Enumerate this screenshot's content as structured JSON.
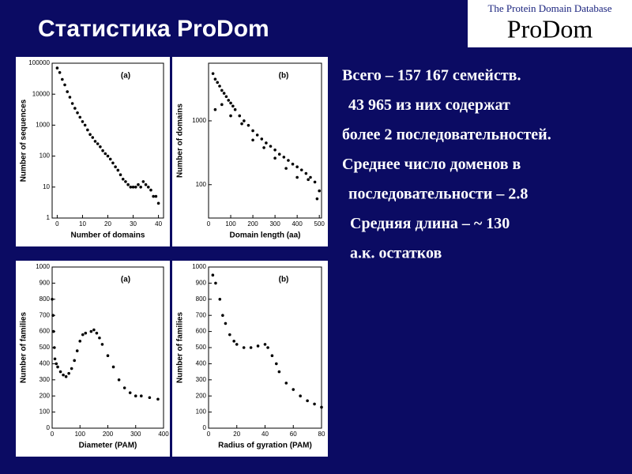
{
  "title": "Статистика ProDom",
  "logo": {
    "subtitle": "The Protein Domain Database",
    "name": "ProDom"
  },
  "text_lines": [
    "Всего – 157 167 семейств.",
    "43 965 из них содержат",
    "более 2 последовательностей.",
    "Среднее число доменов в",
    "последовательности – 2.8",
    "Средняя длина – ~ 130",
    "а.к. остатков"
  ],
  "chart_data": [
    {
      "type": "scatter",
      "annotation": "(a)",
      "x_label": "Number of domains",
      "y_label": "Number of sequences",
      "color": "#000000",
      "log_y": true,
      "x": [
        0,
        1,
        2,
        3,
        4,
        5,
        6,
        7,
        8,
        9,
        10,
        11,
        12,
        13,
        14,
        15,
        16,
        17,
        18,
        19,
        20,
        21,
        22,
        23,
        24,
        25,
        26,
        27,
        28,
        29,
        30,
        31,
        32,
        33,
        34,
        35,
        36,
        37,
        38,
        39,
        40
      ],
      "values": [
        70000,
        50000,
        30000,
        20000,
        12000,
        8000,
        5000,
        3500,
        2500,
        1800,
        1300,
        1000,
        700,
        500,
        400,
        300,
        250,
        200,
        150,
        120,
        100,
        80,
        60,
        45,
        35,
        25,
        18,
        15,
        12,
        10,
        10,
        10,
        12,
        10,
        15,
        12,
        10,
        8,
        5,
        5,
        3
      ],
      "xlim": [
        -2,
        42
      ],
      "xticks": [
        0,
        10,
        20,
        30,
        40
      ],
      "ylim": [
        1,
        100000
      ],
      "yticks": [
        1,
        10,
        100,
        1000,
        10000,
        100000
      ]
    },
    {
      "type": "scatter",
      "annotation": "(b)",
      "x_label": "Domain length (aa)",
      "y_label": "Number of domains",
      "color": "#000000",
      "log_y": true,
      "x": [
        20,
        30,
        40,
        50,
        60,
        70,
        80,
        90,
        100,
        110,
        120,
        140,
        160,
        180,
        200,
        220,
        240,
        260,
        280,
        300,
        320,
        340,
        360,
        380,
        400,
        420,
        440,
        460,
        480,
        500,
        30,
        60,
        100,
        150,
        200,
        250,
        300,
        350,
        400,
        450,
        490
      ],
      "values": [
        5500,
        4500,
        4000,
        3500,
        3000,
        2700,
        2400,
        2100,
        1900,
        1700,
        1500,
        1200,
        1000,
        850,
        700,
        600,
        520,
        450,
        400,
        350,
        300,
        270,
        240,
        210,
        190,
        170,
        150,
        130,
        110,
        80,
        1500,
        1800,
        1200,
        900,
        500,
        380,
        260,
        180,
        130,
        120,
        60
      ],
      "xlim": [
        0,
        510
      ],
      "xticks": [
        0,
        100,
        200,
        300,
        400,
        500
      ],
      "ylim": [
        30,
        8000
      ],
      "yticks": [
        100,
        1000
      ]
    },
    {
      "type": "scatter",
      "annotation": "(a)",
      "x_label": "Diameter (PAM)",
      "y_label": "Number of families",
      "color": "#000000",
      "log_y": false,
      "x": [
        0,
        3,
        5,
        8,
        10,
        15,
        20,
        30,
        40,
        50,
        60,
        70,
        80,
        90,
        100,
        110,
        120,
        140,
        150,
        160,
        170,
        180,
        200,
        220,
        240,
        260,
        280,
        300,
        320,
        350,
        380
      ],
      "values": [
        800,
        700,
        600,
        500,
        430,
        400,
        380,
        350,
        330,
        320,
        340,
        370,
        420,
        480,
        540,
        580,
        590,
        600,
        610,
        590,
        560,
        520,
        450,
        380,
        300,
        250,
        220,
        200,
        200,
        190,
        180
      ],
      "xlim": [
        0,
        400
      ],
      "xticks": [
        0,
        100,
        200,
        300,
        400
      ],
      "ylim": [
        0,
        1000
      ],
      "yticks": [
        0,
        100,
        200,
        300,
        400,
        500,
        600,
        700,
        800,
        900,
        1000
      ]
    },
    {
      "type": "scatter",
      "annotation": "(b)",
      "x_label": "Radius of gyration (PAM)",
      "y_label": "Number of families",
      "color": "#000000",
      "log_y": false,
      "x": [
        3,
        5,
        8,
        10,
        12,
        15,
        18,
        20,
        25,
        30,
        35,
        40,
        42,
        45,
        48,
        50,
        55,
        60,
        65,
        70,
        75,
        80
      ],
      "values": [
        950,
        900,
        800,
        700,
        650,
        580,
        540,
        520,
        500,
        500,
        510,
        520,
        500,
        450,
        400,
        350,
        280,
        240,
        200,
        170,
        150,
        130
      ],
      "xlim": [
        0,
        80
      ],
      "xticks": [
        0,
        20,
        40,
        60,
        80
      ],
      "ylim": [
        0,
        1000
      ],
      "yticks": [
        0,
        100,
        200,
        300,
        400,
        500,
        600,
        700,
        800,
        900,
        1000
      ]
    }
  ]
}
